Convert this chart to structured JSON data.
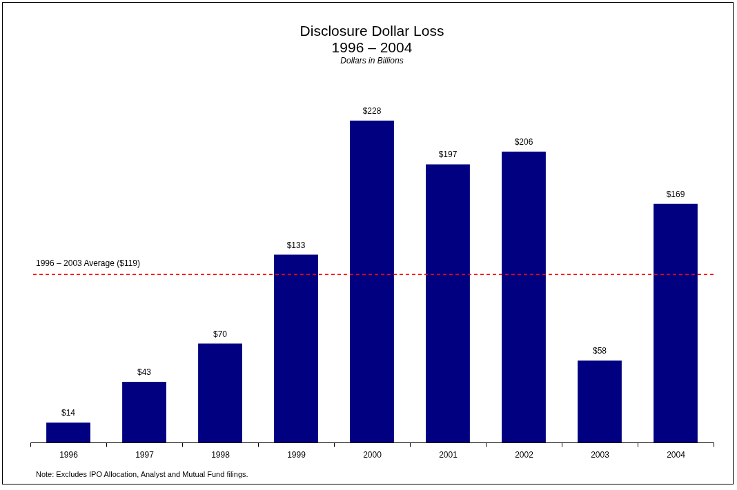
{
  "chart_data": {
    "type": "bar",
    "title": "Disclosure Dollar Loss\n1996 – 2004",
    "subtitle": "Dollars in Billions",
    "categories": [
      "1996",
      "1997",
      "1998",
      "1999",
      "2000",
      "2001",
      "2002",
      "2003",
      "2004"
    ],
    "values": [
      14,
      43,
      70,
      133,
      228,
      197,
      206,
      58,
      169
    ],
    "value_labels": [
      "$14",
      "$43",
      "$70",
      "$133",
      "$228",
      "$197",
      "$206",
      "$58",
      "$169"
    ],
    "color": "#000080",
    "tick_labels": "x",
    "ref_lines": [
      {
        "axis": "y",
        "value": 119,
        "label": "1996 – 2003 Average ($119)",
        "color": "#ff0000",
        "line_style": "dashed"
      }
    ],
    "annotations": [
      "Note:  Excludes IPO Allocation, Analyst and Mutual Fund filings."
    ]
  }
}
